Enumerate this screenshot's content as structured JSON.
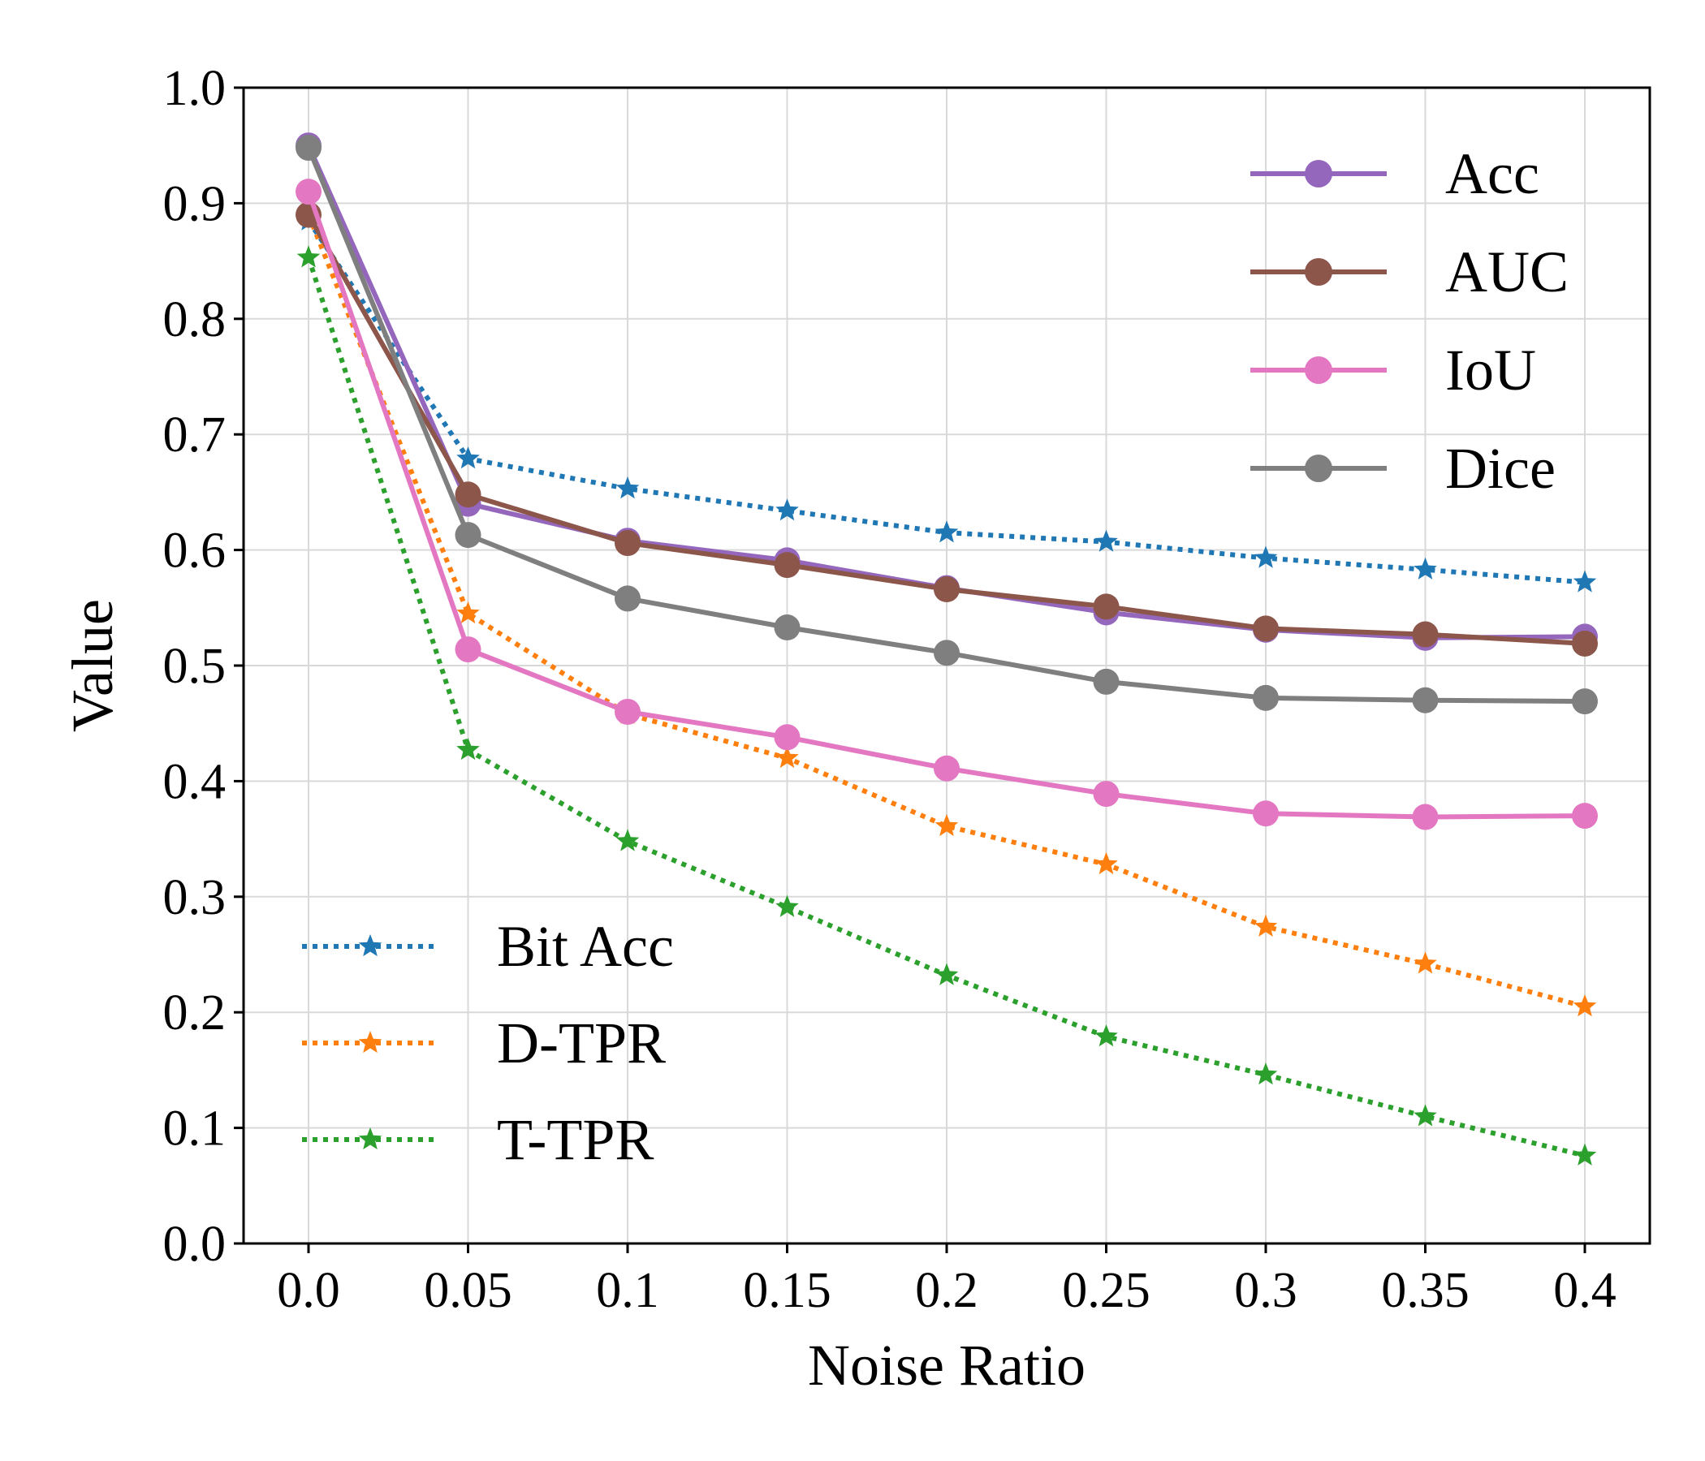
{
  "chart_data": {
    "type": "line",
    "title": "",
    "xlabel": "Noise Ratio",
    "ylabel": "Value",
    "categories": [
      "0.0",
      "0.05",
      "0.1",
      "0.15",
      "0.2",
      "0.25",
      "0.3",
      "0.35",
      "0.4"
    ],
    "ylim": [
      0.0,
      1.0
    ],
    "yticks": [
      "0.0",
      "0.1",
      "0.2",
      "0.3",
      "0.4",
      "0.5",
      "0.6",
      "0.7",
      "0.8",
      "0.9",
      "1.0"
    ],
    "grid": true,
    "legends": [
      {
        "placement": "top-right",
        "entries": [
          "Acc",
          "AUC",
          "IoU",
          "Dice"
        ]
      },
      {
        "placement": "bottom-left",
        "entries": [
          "Bit Acc",
          "D-TPR",
          "T-TPR"
        ]
      }
    ],
    "series": [
      {
        "name": "Acc",
        "color": "#9467bd",
        "style": "solid",
        "marker": "circle",
        "legend": 0,
        "values": [
          0.95,
          0.64,
          0.608,
          0.591,
          0.567,
          0.546,
          0.531,
          0.524,
          0.525
        ]
      },
      {
        "name": "AUC",
        "color": "#8c564b",
        "style": "solid",
        "marker": "circle",
        "legend": 0,
        "values": [
          0.89,
          0.648,
          0.606,
          0.587,
          0.566,
          0.551,
          0.532,
          0.527,
          0.519
        ]
      },
      {
        "name": "IoU",
        "color": "#e377c2",
        "style": "solid",
        "marker": "circle",
        "legend": 0,
        "values": [
          0.91,
          0.514,
          0.46,
          0.438,
          0.411,
          0.389,
          0.372,
          0.369,
          0.37
        ]
      },
      {
        "name": "Dice",
        "color": "#7f7f7f",
        "style": "solid",
        "marker": "circle",
        "legend": 0,
        "values": [
          0.948,
          0.613,
          0.558,
          0.533,
          0.511,
          0.486,
          0.472,
          0.47,
          0.469
        ]
      },
      {
        "name": "Bit Acc",
        "color": "#1f77b4",
        "style": "dotted",
        "marker": "star",
        "legend": 1,
        "values": [
          0.885,
          0.679,
          0.653,
          0.634,
          0.615,
          0.607,
          0.593,
          0.583,
          0.572
        ]
      },
      {
        "name": "D-TPR",
        "color": "#ff7f0e",
        "style": "dotted",
        "marker": "star",
        "legend": 1,
        "values": [
          0.89,
          0.545,
          0.458,
          0.42,
          0.361,
          0.328,
          0.274,
          0.242,
          0.205
        ]
      },
      {
        "name": "T-TPR",
        "color": "#2ca02c",
        "style": "dotted",
        "marker": "star",
        "legend": 1,
        "values": [
          0.853,
          0.427,
          0.348,
          0.291,
          0.232,
          0.179,
          0.146,
          0.11,
          0.076
        ]
      }
    ]
  }
}
